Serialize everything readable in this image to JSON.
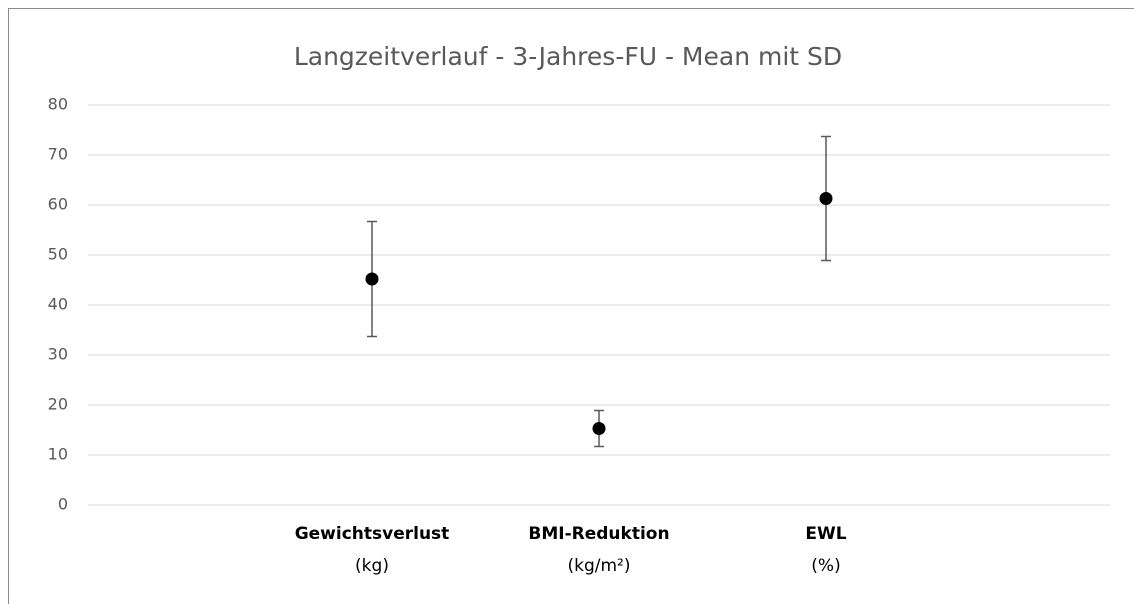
{
  "chart_data": {
    "type": "scatter",
    "title": "Langzeitverlauf - 3-Jahres-FU - Mean mit SD",
    "categories": [
      "Gewichtsverlust",
      "BMI-Reduktion",
      "EWL"
    ],
    "units": [
      "(kg)",
      "(kg/m²)",
      "(%)"
    ],
    "values": [
      45.2,
      15.3,
      61.3
    ],
    "errors": [
      11.5,
      3.6,
      12.4
    ],
    "color": "#000000",
    "error_color": "#595959",
    "ylim": [
      0,
      80
    ],
    "yticks": [
      0,
      10,
      20,
      30,
      40,
      50,
      60,
      70,
      80
    ],
    "grid": true
  }
}
